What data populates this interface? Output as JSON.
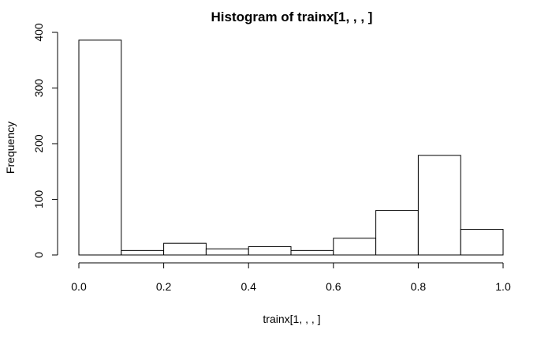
{
  "chart_data": {
    "type": "bar",
    "title": "Histogram of trainx[1, , , ]",
    "xlabel": "trainx[1, , , ]",
    "ylabel": "Frequency",
    "bins": [
      {
        "x0": 0.0,
        "x1": 0.1,
        "count": 386
      },
      {
        "x0": 0.1,
        "x1": 0.2,
        "count": 8
      },
      {
        "x0": 0.2,
        "x1": 0.3,
        "count": 21
      },
      {
        "x0": 0.3,
        "x1": 0.4,
        "count": 11
      },
      {
        "x0": 0.4,
        "x1": 0.5,
        "count": 15
      },
      {
        "x0": 0.5,
        "x1": 0.6,
        "count": 8
      },
      {
        "x0": 0.6,
        "x1": 0.7,
        "count": 30
      },
      {
        "x0": 0.7,
        "x1": 0.8,
        "count": 80
      },
      {
        "x0": 0.8,
        "x1": 0.9,
        "count": 179
      },
      {
        "x0": 0.9,
        "x1": 1.0,
        "count": 46
      }
    ],
    "xlim": [
      0,
      1
    ],
    "ylim": [
      0,
      400
    ],
    "x_ticks": [
      0.0,
      0.2,
      0.4,
      0.6,
      0.8,
      1.0
    ],
    "x_tick_labels": [
      "0.0",
      "0.2",
      "0.4",
      "0.6",
      "0.8",
      "1.0"
    ],
    "y_ticks": [
      0,
      100,
      200,
      300,
      400
    ],
    "y_tick_labels": [
      "0",
      "100",
      "200",
      "300",
      "400"
    ],
    "grid": false,
    "colors": {
      "bar_fill": "#ffffff",
      "bar_stroke": "#000000"
    }
  }
}
